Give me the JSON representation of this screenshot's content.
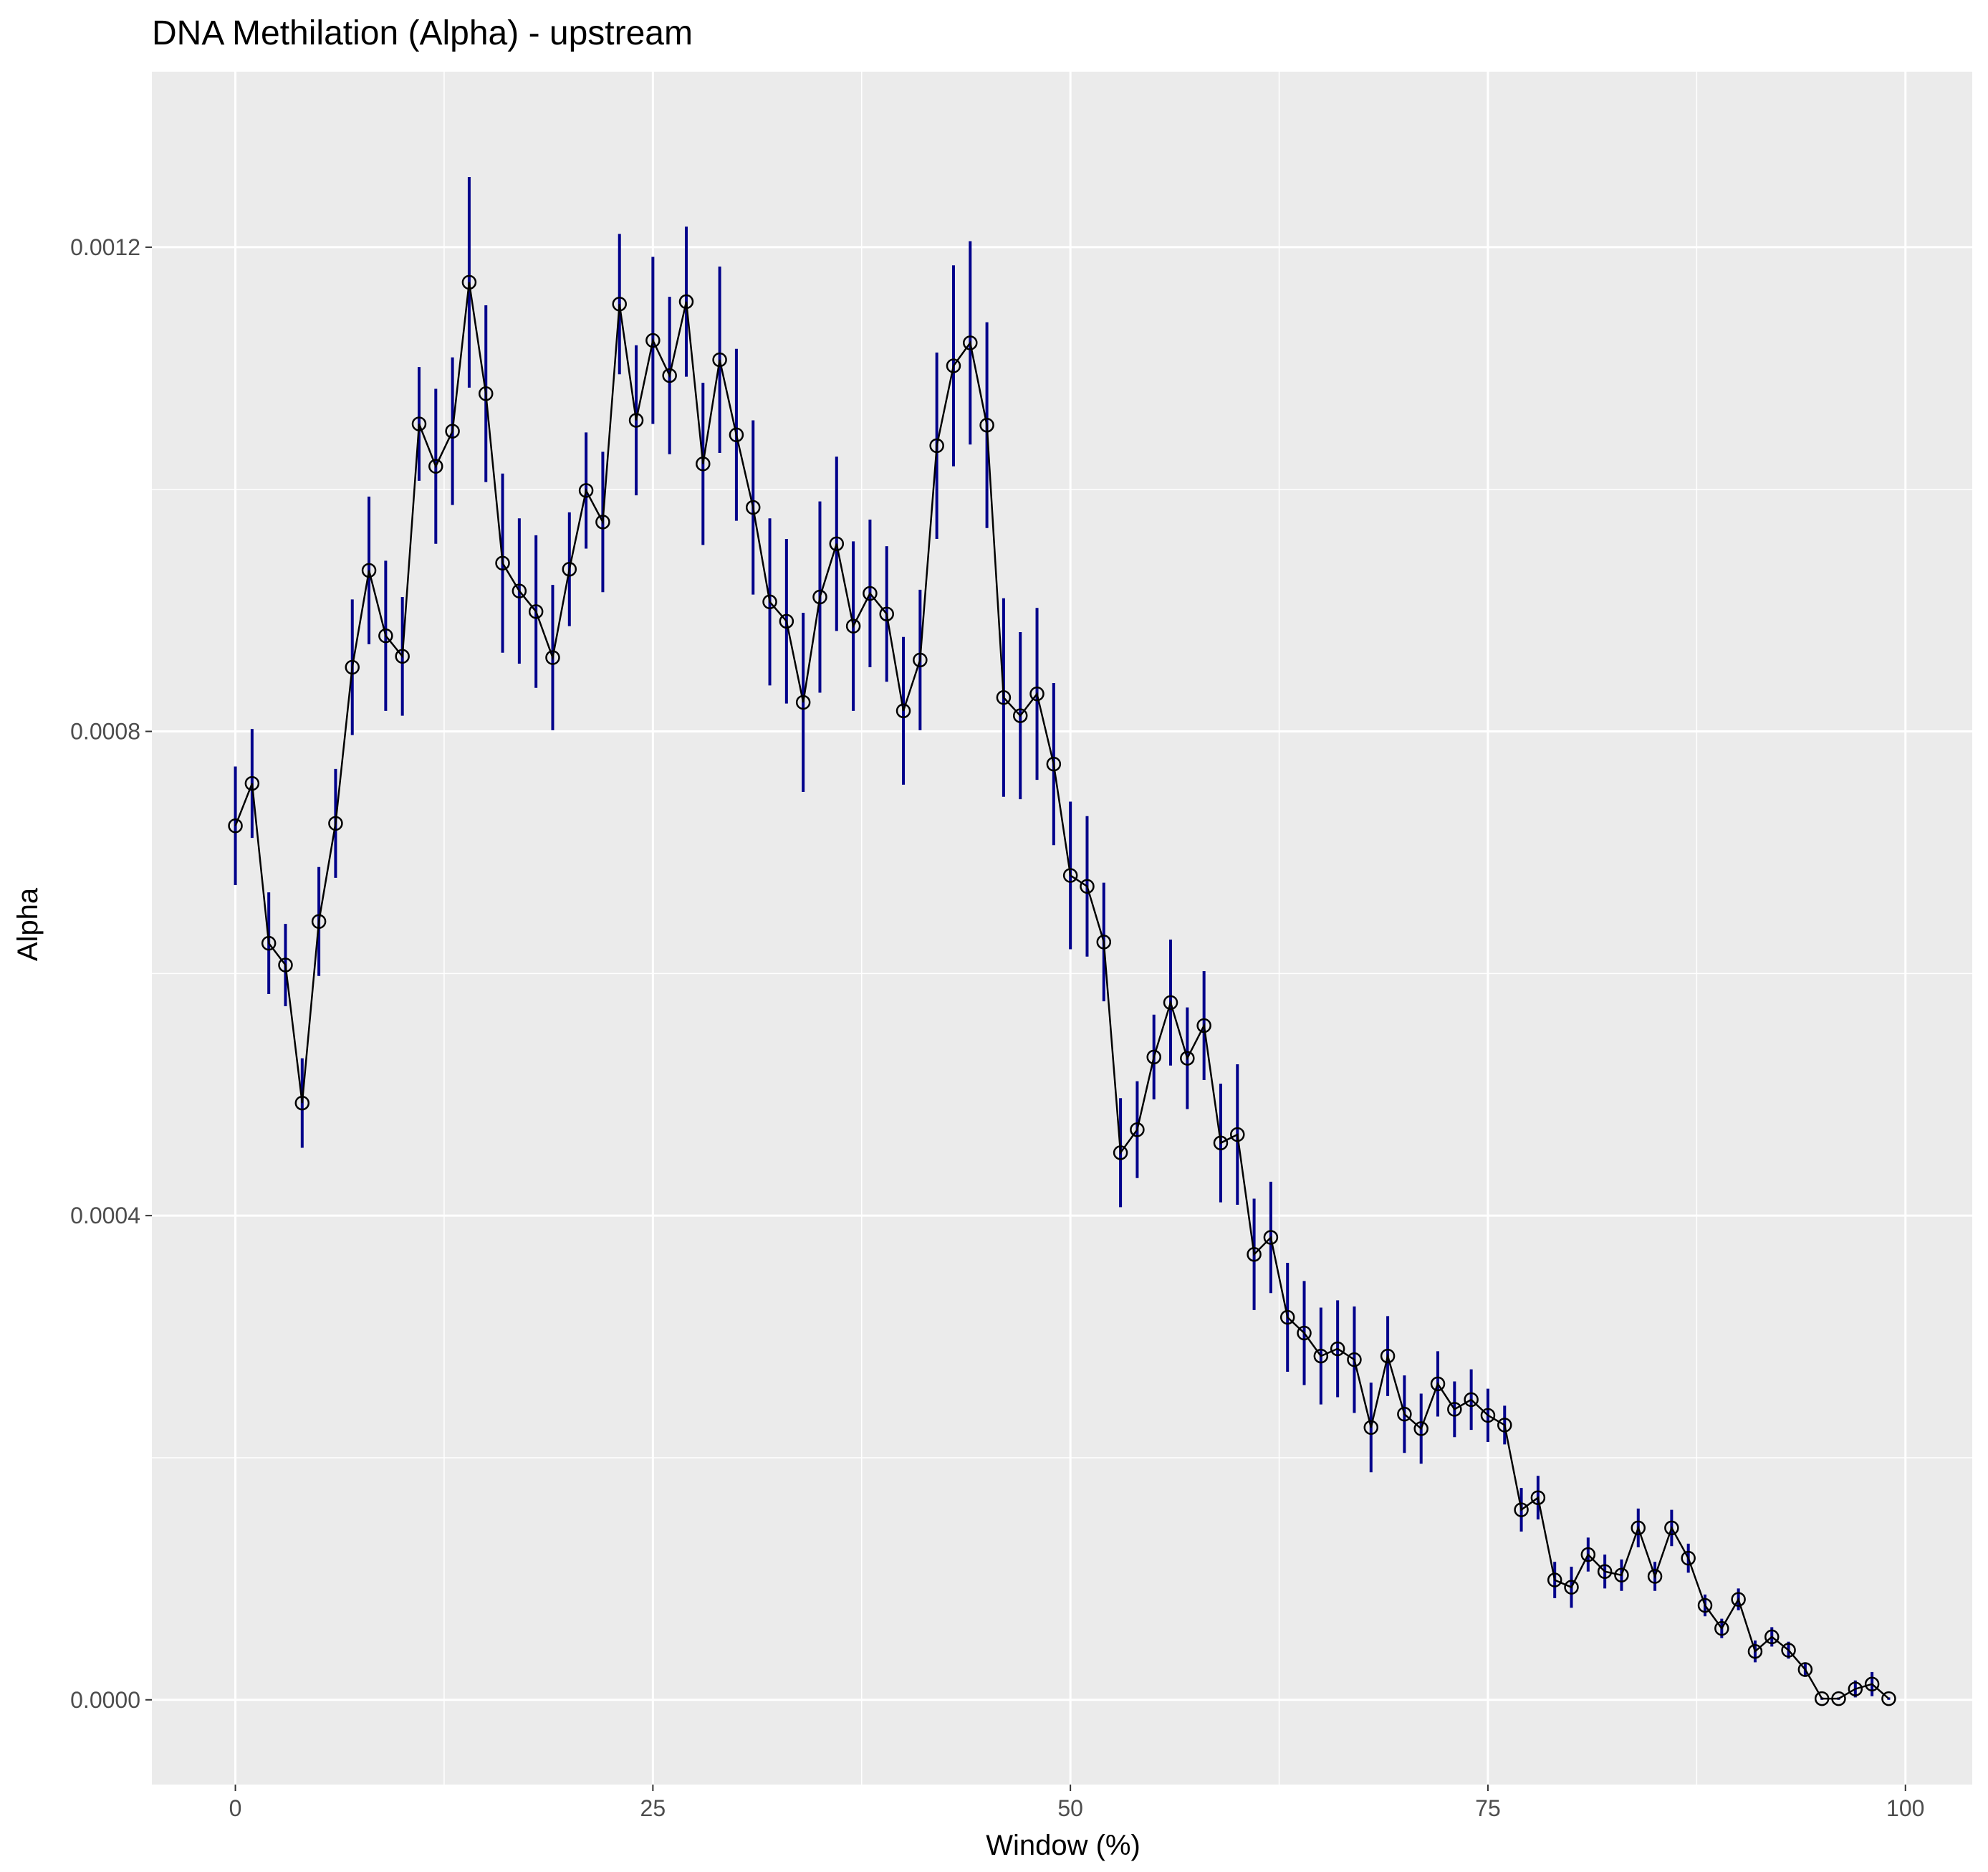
{
  "chart_data": {
    "type": "line",
    "title": "DNA Methilation (Alpha) - upstream",
    "xlabel": "Window (%)",
    "ylabel": "Alpha",
    "xlim": [
      -5,
      104
    ],
    "ylim": [
      -7e-05,
      0.001345
    ],
    "x_ticks": [
      0,
      25,
      50,
      75,
      100
    ],
    "x_tick_labels": [
      "0",
      "25",
      "50",
      "75",
      "100"
    ],
    "y_ticks": [
      0,
      0.0004,
      0.0008,
      0.0012
    ],
    "y_tick_labels": [
      "0.0000",
      "0.0004",
      "0.0008",
      "0.0012"
    ],
    "grid": true,
    "legend": "none",
    "colors": {
      "panel": "#ebebeb",
      "grid": "#ffffff",
      "line": "#000000",
      "errorbar": "#00008b",
      "point_fill": "#ffffff"
    },
    "series": [
      {
        "x": [
          0,
          1,
          2,
          3,
          4,
          5,
          6,
          7,
          8,
          9,
          10,
          11,
          12,
          13,
          14,
          15,
          16,
          17,
          18,
          19,
          20,
          21,
          22,
          23,
          24,
          25,
          26,
          27,
          28,
          29,
          30,
          31,
          32,
          33,
          34,
          35,
          36,
          37,
          38,
          39,
          40,
          41,
          42,
          43,
          44,
          45,
          46,
          47,
          48,
          49,
          50,
          51,
          52,
          53,
          54,
          55,
          56,
          57,
          58,
          59,
          60,
          61,
          62,
          63,
          64,
          65,
          66,
          67,
          68,
          69,
          70,
          71,
          72,
          73,
          74,
          75,
          76,
          77,
          78,
          79,
          80,
          81,
          82,
          83,
          84,
          85,
          86,
          87,
          88,
          89,
          90,
          91,
          92,
          93,
          94,
          95,
          96,
          97,
          98,
          99
        ],
        "y": [
          0.000722,
          0.000757,
          0.000625,
          0.000607,
          0.000493,
          0.000643,
          0.000724,
          0.000853,
          0.000933,
          0.000879,
          0.000862,
          0.001054,
          0.001019,
          0.001048,
          0.001171,
          0.001079,
          0.000939,
          0.000916,
          0.000899,
          0.000861,
          0.000934,
          0.000999,
          0.000973,
          0.001153,
          0.001057,
          0.001123,
          0.001094,
          0.001155,
          0.001021,
          0.001107,
          0.001045,
          0.000985,
          0.000907,
          0.000891,
          0.000824,
          0.000911,
          0.000955,
          0.000887,
          0.000914,
          0.000897,
          0.000817,
          0.000859,
          0.001036,
          0.001102,
          0.001121,
          0.001053,
          0.000828,
          0.000813,
          0.000831,
          0.000773,
          0.000681,
          0.000672,
          0.000626,
          0.000452,
          0.000471,
          0.000531,
          0.000576,
          0.00053,
          0.000557,
          0.00046,
          0.000467,
          0.000368,
          0.000382,
          0.000316,
          0.000303,
          0.000284,
          0.00029,
          0.000281,
          0.000225,
          0.000284,
          0.000236,
          0.000224,
          0.000261,
          0.00024,
          0.000248,
          0.000235,
          0.000227,
          0.000157,
          0.000167,
          9.9e-05,
          9.3e-05,
          0.00012,
          0.000106,
          0.000103,
          0.000142,
          0.000102,
          0.000142,
          0.000117,
          7.8e-05,
          5.9e-05,
          8.3e-05,
          4e-05,
          5.2e-05,
          4.1e-05,
          2.5e-05,
          1e-06,
          1e-06,
          9e-06,
          1.3e-05,
          1e-06
        ],
        "err": [
          4.9e-05,
          4.5e-05,
          4.2e-05,
          3.4e-05,
          3.7e-05,
          4.5e-05,
          4.5e-05,
          5.6e-05,
          6.1e-05,
          6.2e-05,
          4.9e-05,
          4.7e-05,
          6.4e-05,
          6.1e-05,
          8.7e-05,
          7.3e-05,
          7.4e-05,
          6e-05,
          6.3e-05,
          6e-05,
          4.7e-05,
          4.8e-05,
          5.8e-05,
          5.8e-05,
          6.2e-05,
          6.9e-05,
          6.5e-05,
          6.2e-05,
          6.7e-05,
          7.7e-05,
          7.1e-05,
          7.2e-05,
          6.9e-05,
          6.8e-05,
          7.4e-05,
          7.9e-05,
          7.2e-05,
          7e-05,
          6.1e-05,
          5.6e-05,
          6.1e-05,
          5.8e-05,
          7.7e-05,
          8.3e-05,
          8.4e-05,
          8.5e-05,
          8.2e-05,
          6.9e-05,
          7.1e-05,
          6.7e-05,
          6.1e-05,
          5.8e-05,
          4.9e-05,
          4.5e-05,
          4e-05,
          3.5e-05,
          5.2e-05,
          4.2e-05,
          4.5e-05,
          4.9e-05,
          5.8e-05,
          4.6e-05,
          4.6e-05,
          4.5e-05,
          4.3e-05,
          4e-05,
          4e-05,
          4.4e-05,
          3.7e-05,
          3.3e-05,
          3.2e-05,
          2.9e-05,
          2.7e-05,
          2.3e-05,
          2.5e-05,
          2.2e-05,
          1.6e-05,
          1.8e-05,
          1.8e-05,
          1.5e-05,
          1.7e-05,
          1.4e-05,
          1.4e-05,
          1.3e-05,
          1.6e-05,
          1.2e-05,
          1.5e-05,
          1.2e-05,
          9e-06,
          8e-06,
          9e-06,
          9e-06,
          8e-06,
          7e-06,
          6e-06,
          1e-06,
          1e-06,
          7e-06,
          1e-05,
          1e-06
        ]
      }
    ]
  }
}
